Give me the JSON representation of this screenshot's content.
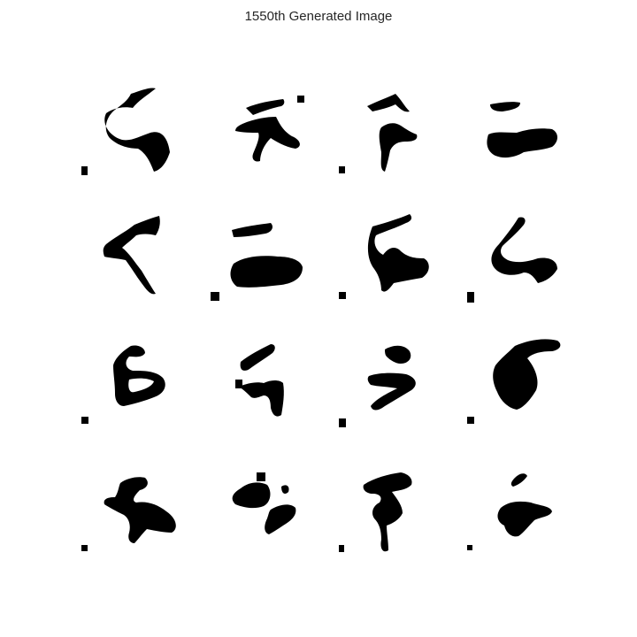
{
  "figure": {
    "title": "1550th Generated Image",
    "colors": {
      "background": "#ffffff",
      "ink": "#000000",
      "title": "#262626"
    }
  },
  "samples": [
    {
      "name": "sample-1-1",
      "glyph": "s-hook"
    },
    {
      "name": "sample-1-2",
      "glyph": "cross-hook"
    },
    {
      "name": "sample-1-3",
      "glyph": "seven-loop"
    },
    {
      "name": "sample-1-4",
      "glyph": "bar-blob"
    },
    {
      "name": "sample-2-1",
      "glyph": "seven-slant"
    },
    {
      "name": "sample-2-2",
      "glyph": "bar-blob-wide"
    },
    {
      "name": "sample-2-3",
      "glyph": "s-hook-2"
    },
    {
      "name": "sample-2-4",
      "glyph": "four-hook"
    },
    {
      "name": "sample-3-1",
      "glyph": "s-loop"
    },
    {
      "name": "sample-3-2",
      "glyph": "five-hook"
    },
    {
      "name": "sample-3-3",
      "glyph": "three-loop"
    },
    {
      "name": "sample-3-4",
      "glyph": "blob-arm"
    },
    {
      "name": "sample-4-1",
      "glyph": "scribble"
    },
    {
      "name": "sample-4-2",
      "glyph": "blob-pair"
    },
    {
      "name": "sample-4-3",
      "glyph": "seven-blob"
    },
    {
      "name": "sample-4-4",
      "glyph": "small-blob"
    }
  ]
}
